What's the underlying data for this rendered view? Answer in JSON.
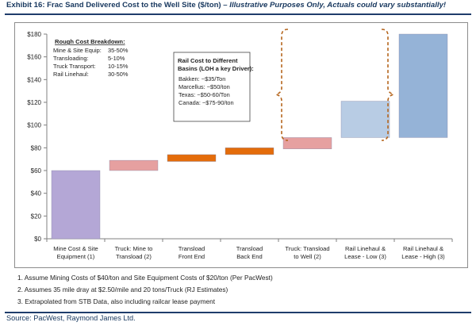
{
  "header": {
    "title": "Exhibit 16: Frac Sand Delivered Cost to the Well Site ($/ton)",
    "subtitle": " – Illustrative Purposes Only, Actuals could vary substantially!"
  },
  "chart_data": {
    "type": "bar",
    "subtype": "waterfall",
    "categories": [
      [
        "Mine Cost & Site",
        "Equipment (1)"
      ],
      [
        "Truck: Mine to",
        "Transload (2)"
      ],
      [
        "Transload",
        "Front End"
      ],
      [
        "Transload",
        "Back End"
      ],
      [
        "Truck: Transload",
        "to Well (2)"
      ],
      [
        "Rail Linehaul &",
        "Lease - Low (3)"
      ],
      [
        "Rail Linehaul &",
        "Lease - High (3)"
      ]
    ],
    "bars": [
      {
        "base": 0,
        "top": 60,
        "color": "#b4a7d6"
      },
      {
        "base": 60,
        "top": 69,
        "color": "#e6a0a0"
      },
      {
        "base": 68,
        "top": 74,
        "color": "#e46c0a"
      },
      {
        "base": 74,
        "top": 80,
        "color": "#e46c0a"
      },
      {
        "base": 79,
        "top": 89,
        "color": "#e6a0a0"
      },
      {
        "base": 89,
        "top": 121,
        "color": "#b8cce4"
      },
      {
        "base": 89,
        "top": 180,
        "color": "#95b3d7"
      }
    ],
    "ylim": [
      0,
      180
    ],
    "yticks": [
      0,
      20,
      40,
      60,
      80,
      100,
      120,
      140,
      160,
      180
    ],
    "ytick_labels": [
      "$0",
      "$20",
      "$40",
      "$60",
      "$80",
      "$100",
      "$120",
      "$140",
      "$160",
      "$180"
    ],
    "grid": false,
    "bracket_color": "#b5651d",
    "annotations": {
      "rough_cost": {
        "title": "Rough Cost Breakdown:",
        "rows": [
          {
            "label": "Mine & Site Equip:",
            "value": "35-50%"
          },
          {
            "label": "Transloading:",
            "value": "5-10%"
          },
          {
            "label": "Truck Transport:",
            "value": "10-15%"
          },
          {
            "label": "Rail Linehaul:",
            "value": "30-50%"
          }
        ]
      },
      "rail_cost": {
        "title_lines": [
          "Rail Cost to Different",
          "Basins (LOH a key Driver):"
        ],
        "rows": [
          "Bakken: ~$35/Ton",
          "Marcellus: ~$50/ton",
          "Texas: ~$50-60/Ton",
          "Canada: ~$75-90/ton"
        ]
      }
    }
  },
  "footnotes": [
    "1.  Assume Mining Costs of $40/ton and Site Equipment Costs of $20/ton (Per PacWest)",
    "2.  Assumes 35 mile dray at $2.50/mile and 20 tons/Truck (RJ Estimates)",
    "3.  Extrapolated from STB Data, also including railcar lease payment"
  ],
  "source": "Source: PacWest, Raymond James Ltd."
}
